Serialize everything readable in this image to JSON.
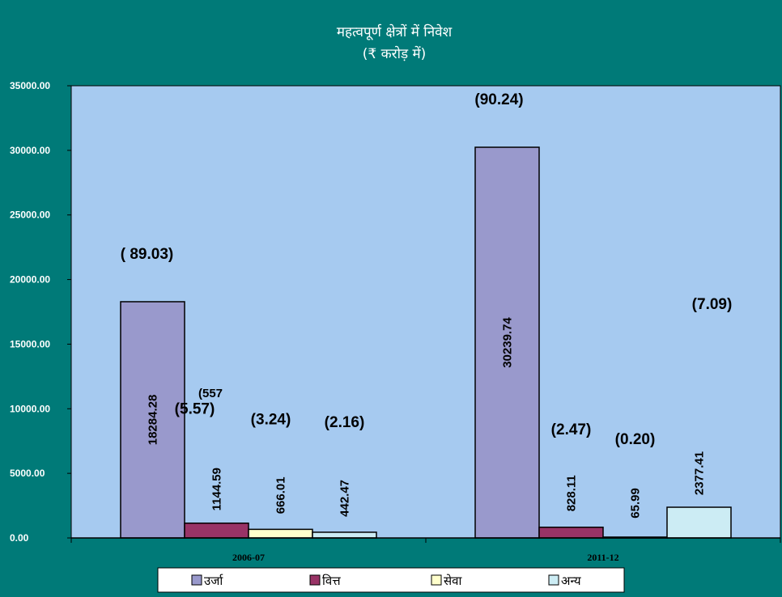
{
  "chart_data": {
    "type": "bar",
    "title": "महत्वपूर्ण क्षेत्रों में निवेश",
    "subtitle": "(₹ करोड़ में)",
    "categories": [
      "2006-07",
      "2011-12"
    ],
    "series": [
      {
        "name": "उर्जा",
        "color": "#9999cc",
        "values": [
          18284.28,
          30239.74
        ],
        "percent_labels": [
          "( 89.03)",
          "(90.24)"
        ]
      },
      {
        "name": "वित्त",
        "color": "#993366",
        "values": [
          1144.59,
          828.11
        ],
        "percent_labels": [
          "(5.57)",
          "(2.47)"
        ]
      },
      {
        "name": "सेवा",
        "color": "#ffffcc",
        "values": [
          666.01,
          65.99
        ],
        "percent_labels": [
          "(3.24)",
          "(0.20)"
        ]
      },
      {
        "name": "अन्य",
        "color": "#ccecf4",
        "values": [
          442.47,
          2377.41
        ],
        "percent_labels": [
          "(2.16)",
          "(7.09)"
        ]
      }
    ],
    "stray_label": "(557",
    "yticks": [
      "0.00",
      "5000.00",
      "10000.00",
      "15000.00",
      "20000.00",
      "25000.00",
      "30000.00",
      "35000.00"
    ],
    "ylim": [
      0,
      35000
    ],
    "grid": false,
    "legend_position": "bottom",
    "plot_background": "#a6caf0",
    "page_background": "#007a78"
  }
}
